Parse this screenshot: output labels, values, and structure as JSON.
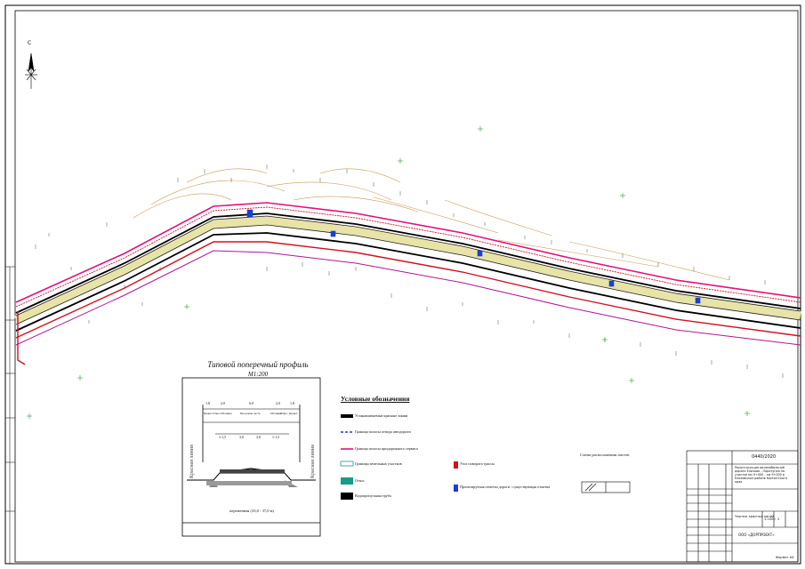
{
  "north_label": "С",
  "cross_section": {
    "title": "Типовой поперечный профиль",
    "scale": "М1:200",
    "element_labels": [
      "Кювет",
      "Откос",
      "Обочина",
      "Проезжая часть",
      "Обочина",
      "Откос",
      "Кювет"
    ],
    "dim_top": [
      "1,8",
      "2,0",
      "6,0",
      "2,0",
      "1,8"
    ],
    "dim_mid": [
      "1:1,5",
      "3,0",
      "3,0",
      "1:1,5"
    ],
    "side_label": "Красная линия",
    "bottom_label": "переменная (33,0 - 37,0 м)"
  },
  "legend": {
    "title": "Условные обозначения",
    "items": [
      {
        "label": "Устанавливаемые красные линии",
        "color": "#000000"
      },
      {
        "label": "Граница полосы отвода автодороги",
        "color": "#1a3fd6"
      },
      {
        "label": "Граница полосы придорожного сервиса",
        "color": "#e0127a"
      },
      {
        "label": "Границы земельных участков",
        "color": "#d01020"
      },
      {
        "label": "Откос",
        "color": "#1a9a8a"
      },
      {
        "label": "Водопропускная труба",
        "color": "#1a3fd6"
      }
    ],
    "right_items": [
      {
        "label": "Угол поворота трассы",
        "color": "#d01020"
      },
      {
        "label": "Проектируемая отметка дороги / существующая отметка",
        "color": "#1a3fd6"
      }
    ]
  },
  "scheme": {
    "title": "Схема расположения листов"
  },
  "title_block": {
    "code": "0440/2020",
    "project": "Реконструкция автомобильной дороги Елизово - Паратунка на участке км 0+000 - км 9+000 в Елизовском районе Камчатского края",
    "sheet_name": "Чертеж красных линий",
    "scale": "1:1000",
    "sheet": "2",
    "org": "ООО «ДОРПРОЕКТ»",
    "format": "Формат А4"
  },
  "colors": {
    "red_line": "#000000",
    "right_of_way": "#1a3fd6",
    "service_strip": "#e0127a",
    "land_parcel": "#d01020",
    "contour": "#c89a54",
    "vegetation": "#2f9a3a"
  }
}
